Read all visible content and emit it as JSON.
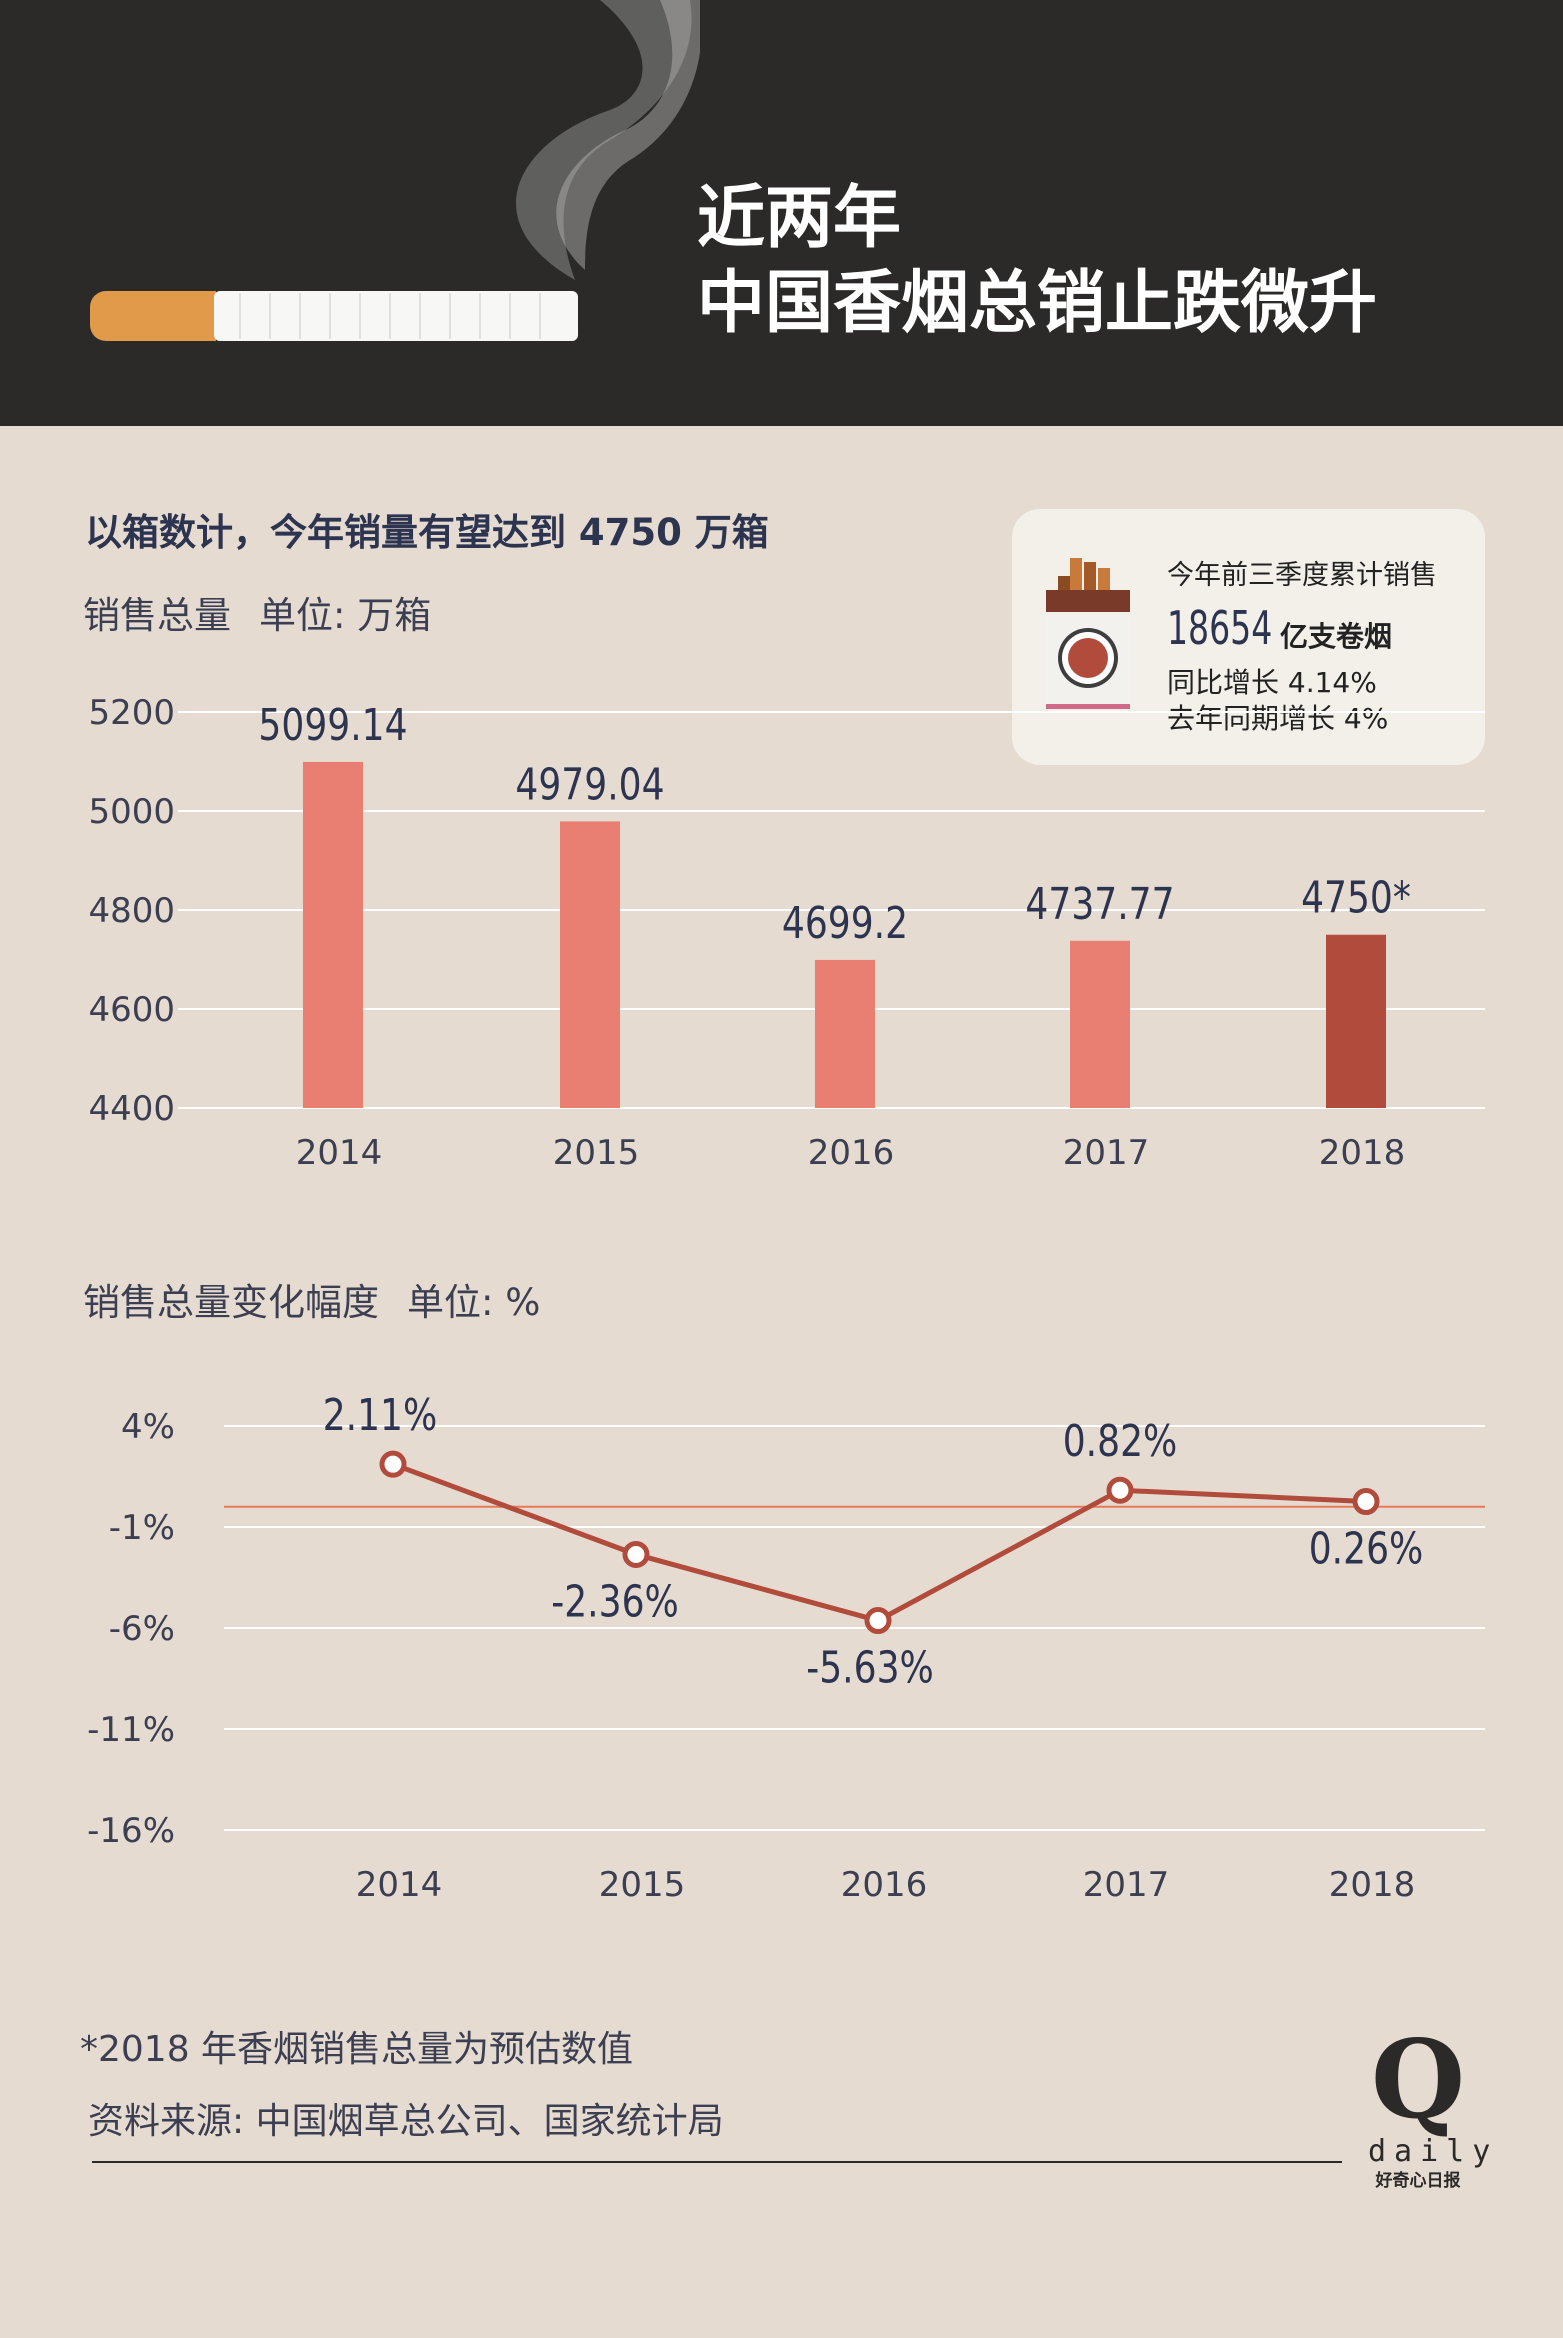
{
  "header": {
    "title_line1": "近两年",
    "title_line2": "中国香烟总销止跌微升"
  },
  "headline": "以箱数计，今年销量有望达到 4750 万箱",
  "bar_section": {
    "label": "销售总量",
    "unit": "单位: 万箱"
  },
  "info_card": {
    "line1": "今年前三季度累计销售",
    "big_number": "18654",
    "big_unit": "亿支卷烟",
    "line3": "同比增长 4.14%",
    "line4": "去年同期增长 4%"
  },
  "line_section": {
    "label": "销售总量变化幅度",
    "unit": "单位: %"
  },
  "footnote": "*2018 年香烟销售总量为预估数值",
  "source": "资料来源: 中国烟草总公司、国家统计局",
  "logo": {
    "letter": "Q",
    "word": "daily",
    "tagline": "好奇心日报"
  },
  "colors": {
    "header_bg": "#2b2a29",
    "page_bg": "#e5dbd0",
    "bar": "#e87f72",
    "bar_highlight": "#b14b3b",
    "line": "#b14b3b",
    "text_dark": "#2d3450"
  },
  "chart_data": [
    {
      "type": "bar",
      "categories": [
        "2014",
        "2015",
        "2016",
        "2017",
        "2018"
      ],
      "values": [
        5099.14,
        4979.04,
        4699.2,
        4737.77,
        4750
      ],
      "data_labels": [
        "5099.14",
        "4979.04",
        "4699.2",
        "4737.77",
        "4750*"
      ],
      "highlight_index": 4,
      "yticks": [
        "5200",
        "5000",
        "4800",
        "4600",
        "4400"
      ],
      "ylim": [
        4400,
        5200
      ],
      "grid": true
    },
    {
      "type": "line",
      "categories": [
        "2014",
        "2015",
        "2016",
        "2017",
        "2018"
      ],
      "values": [
        2.11,
        -2.36,
        -5.63,
        0.82,
        0.26
      ],
      "data_labels": [
        "2.11%",
        "-2.36%",
        "-5.63%",
        "0.82%",
        "0.26%"
      ],
      "label_positions": [
        "above",
        "below",
        "below",
        "above",
        "below"
      ],
      "yticks": [
        "4%",
        "-1%",
        "-6%",
        "-11%",
        "-16%"
      ],
      "ylim": [
        -16,
        4
      ],
      "reference_line": 0,
      "grid": true
    }
  ]
}
